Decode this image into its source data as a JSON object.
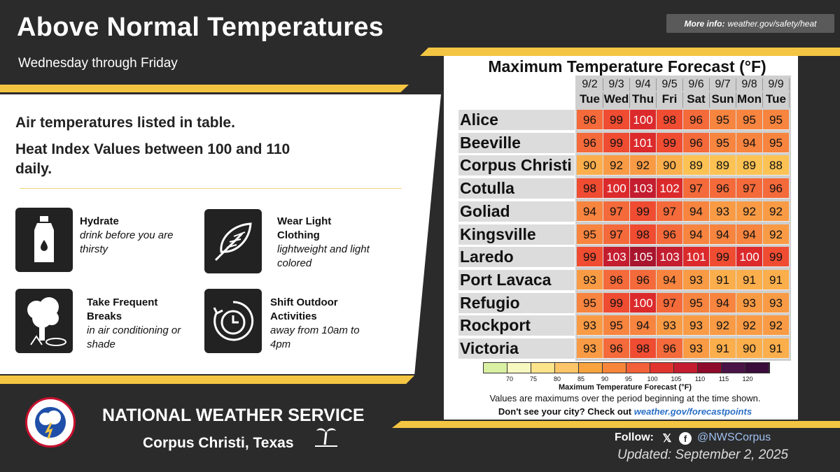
{
  "header": {
    "title": "Above Normal Temperatures",
    "subtitle": "Wednesday through Friday",
    "more_info_label": "More info:",
    "more_info_url": "weather.gov/safety/heat"
  },
  "left": {
    "line1": "Air temperatures listed in table.",
    "line2": "Heat Index Values between 100 and 110",
    "line3": "daily.",
    "tips": [
      {
        "title": "Hydrate",
        "desc": "drink before you are thirsty",
        "icon": "water-bottle-icon"
      },
      {
        "title": "Wear Light Clothing",
        "desc": "lightweight and light colored",
        "icon": "feather-icon"
      },
      {
        "title": "Take Frequent Breaks",
        "desc": "in air conditioning or shade",
        "icon": "tree-shade-icon"
      },
      {
        "title": "Shift Outdoor Activities",
        "desc": "away from 10am to 4pm",
        "icon": "clock-icon"
      }
    ]
  },
  "table": {
    "title": "Maximum Temperature Forecast (°F)",
    "dates": [
      "9/2",
      "9/3",
      "9/4",
      "9/5",
      "9/6",
      "9/7",
      "9/8",
      "9/9"
    ],
    "days": [
      "Tue",
      "Wed",
      "Thu",
      "Fri",
      "Sat",
      "Sun",
      "Mon",
      "Tue"
    ],
    "rows": [
      {
        "city": "Alice",
        "values": [
          96,
          99,
          100,
          98,
          96,
          95,
          95,
          95
        ]
      },
      {
        "city": "Beeville",
        "values": [
          96,
          99,
          101,
          99,
          96,
          95,
          94,
          95
        ]
      },
      {
        "city": "Corpus Christi",
        "values": [
          90,
          92,
          92,
          90,
          89,
          89,
          89,
          88
        ]
      },
      {
        "city": "Cotulla",
        "values": [
          98,
          100,
          103,
          102,
          97,
          96,
          97,
          96
        ]
      },
      {
        "city": "Goliad",
        "values": [
          94,
          97,
          99,
          97,
          94,
          93,
          92,
          92
        ]
      },
      {
        "city": "Kingsville",
        "values": [
          95,
          97,
          98,
          96,
          94,
          94,
          94,
          92
        ]
      },
      {
        "city": "Laredo",
        "values": [
          99,
          103,
          105,
          103,
          101,
          99,
          100,
          99
        ]
      },
      {
        "city": "Port Lavaca",
        "values": [
          93,
          96,
          96,
          94,
          93,
          91,
          91,
          91
        ]
      },
      {
        "city": "Refugio",
        "values": [
          95,
          99,
          100,
          97,
          95,
          94,
          93,
          93
        ]
      },
      {
        "city": "Rockport",
        "values": [
          93,
          95,
          94,
          93,
          93,
          92,
          92,
          92
        ]
      },
      {
        "city": "Victoria",
        "values": [
          93,
          96,
          98,
          96,
          93,
          91,
          90,
          91
        ]
      }
    ],
    "scale_ticks": [
      "70",
      "75",
      "80",
      "85",
      "90",
      "95",
      "100",
      "105",
      "110",
      "115",
      "120"
    ],
    "scale_colors": [
      "#d9f0a3",
      "#f7f7c0",
      "#fde38a",
      "#fcc56a",
      "#f9a43e",
      "#f7863a",
      "#f2613a",
      "#e2342f",
      "#c41d2f",
      "#8e0b2c",
      "#4a1446",
      "#3a0d3a"
    ],
    "scale_caption": "Maximum Temperature Forecast (°F)",
    "footnote1": "Values are maximums over the period beginning at the time shown.",
    "footnote2_prefix": "Don't see your city? Check out",
    "footnote2_link": "weather.gov/forecastpoints"
  },
  "footer": {
    "org": "NATIONAL WEATHER SERVICE",
    "office": "Corpus Christi, Texas",
    "follow_label": "Follow:",
    "handle": "@NWSCorpus",
    "updated": "Updated: September 2, 2025"
  }
}
